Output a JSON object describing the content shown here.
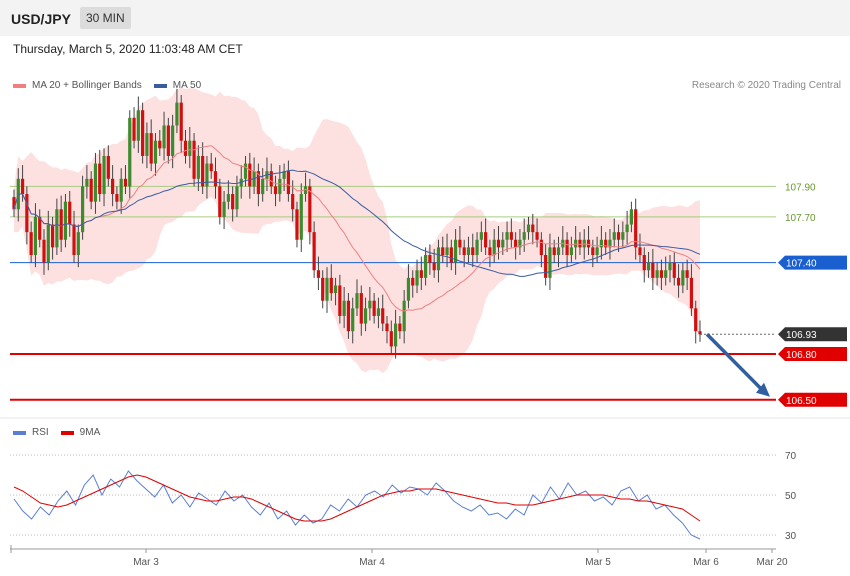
{
  "header": {
    "pair": "USD/JPY",
    "timeframe": "30 MIN"
  },
  "timestamp": "Thursday, March 5, 2020 11:03:48 AM CET",
  "credit": "Research © 2020 Trading Central",
  "legend_main": {
    "bb_label": "MA 20 + Bollinger Bands",
    "ma50_label": "MA 50",
    "bb_color": "#f08080",
    "ma50_color": "#3a5ba0"
  },
  "legend_rsi": {
    "rsi_label": "RSI",
    "ma9_label": "9MA",
    "rsi_color": "#5b7fd0",
    "ma9_color": "#e00000"
  },
  "chart_data": [
    {
      "type": "candlestick",
      "title": "USD/JPY 30 MIN",
      "x_ticks": [
        "Mar 3",
        "Mar 4",
        "Mar 5",
        "Mar 6",
        "Mar 20"
      ],
      "ylim": [
        106.4,
        108.5
      ],
      "closes": [
        107.75,
        107.95,
        107.85,
        107.6,
        107.45,
        107.7,
        107.55,
        107.4,
        107.65,
        107.5,
        107.75,
        107.55,
        107.8,
        107.65,
        107.45,
        107.6,
        107.9,
        107.95,
        107.8,
        108.05,
        107.85,
        108.1,
        107.95,
        107.85,
        107.8,
        107.95,
        107.9,
        108.35,
        108.2,
        108.4,
        108.1,
        108.25,
        108.05,
        108.2,
        108.15,
        108.3,
        108.1,
        108.3,
        108.45,
        108.2,
        108.1,
        108.2,
        107.95,
        108.1,
        107.9,
        108.05,
        108.0,
        107.9,
        107.7,
        107.8,
        107.85,
        107.75,
        107.9,
        107.95,
        108.05,
        107.9,
        108.0,
        107.85,
        107.95,
        108.0,
        107.9,
        107.85,
        107.95,
        108.0,
        107.85,
        107.75,
        107.55,
        107.85,
        107.9,
        107.6,
        107.35,
        107.3,
        107.15,
        107.3,
        107.2,
        107.25,
        107.05,
        107.15,
        106.95,
        107.1,
        107.2,
        107.0,
        107.1,
        107.15,
        107.05,
        107.1,
        107.0,
        106.95,
        106.85,
        107.0,
        106.95,
        107.15,
        107.3,
        107.25,
        107.35,
        107.3,
        107.45,
        107.4,
        107.35,
        107.5,
        107.45,
        107.5,
        107.4,
        107.55,
        107.5,
        107.45,
        107.5,
        107.45,
        107.55,
        107.6,
        107.5,
        107.45,
        107.55,
        107.5,
        107.55,
        107.6,
        107.55,
        107.5,
        107.55,
        107.6,
        107.65,
        107.6,
        107.55,
        107.45,
        107.3,
        107.5,
        107.45,
        107.5,
        107.55,
        107.45,
        107.5,
        107.55,
        107.5,
        107.55,
        107.5,
        107.45,
        107.5,
        107.55,
        107.5,
        107.55,
        107.6,
        107.55,
        107.6,
        107.65,
        107.75,
        107.5,
        107.45,
        107.35,
        107.4,
        107.3,
        107.35,
        107.3,
        107.35,
        107.4,
        107.3,
        107.25,
        107.35,
        107.3,
        107.1,
        106.95,
        106.93
      ],
      "horizontal_levels": [
        {
          "label": "107.90",
          "value": 107.9,
          "color": "#a6cc80"
        },
        {
          "label": "107.70",
          "value": 107.7,
          "color": "#a6cc80"
        },
        {
          "label": "107.40",
          "value": 107.4,
          "color": "#1a5fd0"
        },
        {
          "label": "106.93",
          "value": 106.93,
          "color": "#333333"
        },
        {
          "label": "106.80",
          "value": 106.8,
          "color": "#e00000"
        },
        {
          "label": "106.50",
          "value": 106.5,
          "color": "#e00000"
        }
      ]
    },
    {
      "type": "line",
      "title": "RSI",
      "y_ticks": [
        "70",
        "50",
        "30"
      ],
      "ylim": [
        25,
        75
      ],
      "series": [
        {
          "name": "RSI",
          "values": [
            48,
            42,
            38,
            44,
            40,
            47,
            52,
            45,
            55,
            60,
            50,
            58,
            54,
            62,
            57,
            53,
            49,
            55,
            46,
            50,
            44,
            51,
            48,
            45,
            52,
            47,
            50,
            44,
            40,
            46,
            38,
            42,
            35,
            40,
            36,
            38,
            45,
            42,
            48,
            44,
            50,
            52,
            49,
            55,
            51,
            54,
            53,
            50,
            56,
            52,
            47,
            44,
            42,
            45,
            40,
            41,
            38,
            43,
            40,
            50,
            46,
            54,
            48,
            56,
            50,
            52,
            47,
            49,
            45,
            52,
            54,
            47,
            50,
            43,
            45,
            40,
            36,
            30,
            28
          ]
        },
        {
          "name": "9MA",
          "values": [
            54,
            52,
            49,
            46,
            45,
            44,
            45,
            47,
            49,
            51,
            53,
            55,
            57,
            59,
            60,
            59,
            57,
            55,
            53,
            51,
            49,
            48,
            47,
            47,
            48,
            49,
            49,
            48,
            46,
            44,
            42,
            40,
            38,
            37,
            37,
            37,
            38,
            40,
            42,
            44,
            46,
            48,
            50,
            51,
            52,
            52,
            53,
            53,
            53,
            52,
            51,
            50,
            49,
            48,
            47,
            46,
            46,
            45,
            45,
            45,
            46,
            47,
            48,
            49,
            50,
            50,
            50,
            50,
            49,
            48,
            48,
            47,
            47,
            46,
            45,
            44,
            43,
            40,
            37
          ]
        }
      ]
    }
  ]
}
